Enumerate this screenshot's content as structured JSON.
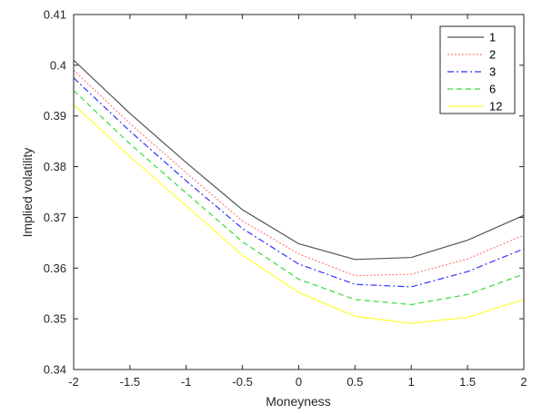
{
  "chart_data": {
    "type": "line",
    "title": "",
    "xlabel": "Moneyness",
    "ylabel": "Implied volatility",
    "xlim": [
      -2,
      2
    ],
    "ylim": [
      0.34,
      0.41
    ],
    "x": [
      -2,
      -1.5,
      -1,
      -0.5,
      0,
      0.5,
      1,
      1.5,
      2
    ],
    "xticks": [
      -2,
      -1.5,
      -1,
      -0.5,
      0,
      0.5,
      1,
      1.5,
      2
    ],
    "xtick_labels": [
      "-2",
      "-1.5",
      "-1",
      "-0.5",
      "0",
      "0.5",
      "1",
      "1.5",
      "2"
    ],
    "yticks": [
      0.34,
      0.35,
      0.36,
      0.37,
      0.38,
      0.39,
      0.4,
      0.41
    ],
    "ytick_labels": [
      "0.34",
      "0.35",
      "0.36",
      "0.37",
      "0.38",
      "0.39",
      "0.4",
      "0.41"
    ],
    "grid": false,
    "legend_position": "top-right",
    "series": [
      {
        "name": "1",
        "color": "#555555",
        "dash": "solid",
        "values": [
          0.401,
          0.3905,
          0.3808,
          0.3715,
          0.3648,
          0.3617,
          0.3621,
          0.3655,
          0.3704
        ]
      },
      {
        "name": "2",
        "color": "#ff7f7f",
        "dash": "dotted",
        "values": [
          0.399,
          0.3885,
          0.3788,
          0.3693,
          0.3628,
          0.3585,
          0.3588,
          0.3618,
          0.3665
        ]
      },
      {
        "name": "3",
        "color": "#3333ff",
        "dash": "dashdot",
        "values": [
          0.3975,
          0.387,
          0.3772,
          0.3678,
          0.3608,
          0.3568,
          0.3563,
          0.3593,
          0.3638
        ]
      },
      {
        "name": "6",
        "color": "#33dd33",
        "dash": "dashed",
        "values": [
          0.395,
          0.3845,
          0.3748,
          0.3652,
          0.3578,
          0.3538,
          0.3528,
          0.3548,
          0.3588
        ]
      },
      {
        "name": "12",
        "color": "#ffff33",
        "dash": "solid",
        "values": [
          0.3922,
          0.382,
          0.3723,
          0.3625,
          0.3552,
          0.3505,
          0.3491,
          0.3503,
          0.3538
        ]
      }
    ]
  }
}
